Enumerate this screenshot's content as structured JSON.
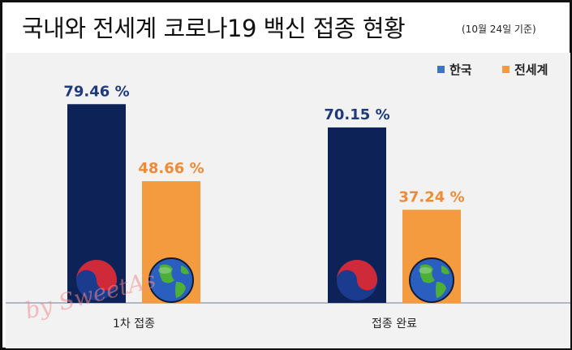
{
  "title": "국내와 전세계 코로나19 백신 접종 현황",
  "subtitle": "(10월 24일 기준)",
  "watermark": "by SweetAs",
  "colors": {
    "korea": "#0d2358",
    "world": "#f49b3f",
    "korea_label": "#1f3a7a",
    "world_label": "#ef8a36",
    "legend_korea_swatch": "#3f74c4",
    "plot_background": "#f2f2f2"
  },
  "legend": [
    {
      "label": "한국",
      "color": "#3f74c4"
    },
    {
      "label": "전세계",
      "color": "#f49b3f"
    }
  ],
  "icons": {
    "korea": "taegeuk-icon",
    "world": "globe-icon"
  },
  "chart_data": {
    "type": "bar",
    "title": "국내와 전세계 코로나19 백신 접종 현황",
    "subtitle": "(10월 24일 기준)",
    "categories": [
      "1차 접종",
      "접종 완료"
    ],
    "series": [
      {
        "name": "한국",
        "values": [
          79.46,
          70.15
        ],
        "labels": [
          "79.46 %",
          "70.15 %"
        ]
      },
      {
        "name": "전세계",
        "values": [
          48.66,
          37.24
        ],
        "labels": [
          "48.66 %",
          "37.24 %"
        ]
      }
    ],
    "ylim": [
      0,
      100
    ],
    "grid": false,
    "legend_position": "top-right"
  }
}
